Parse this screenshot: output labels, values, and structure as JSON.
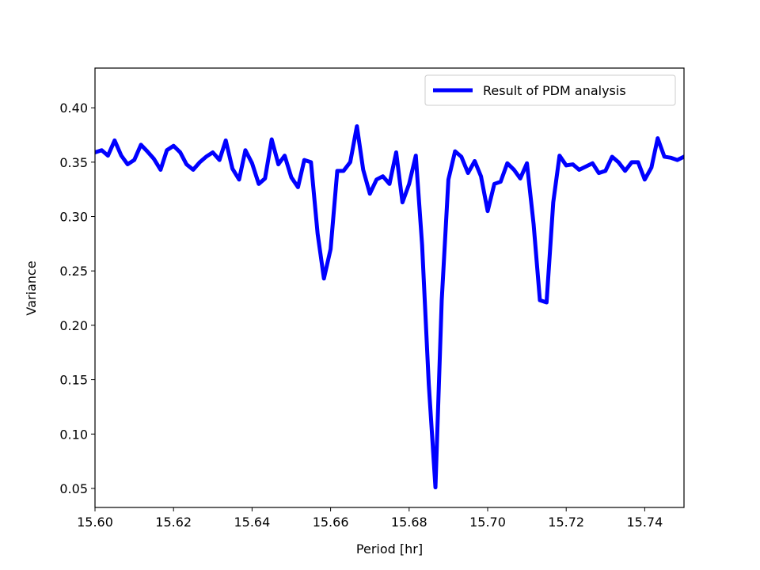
{
  "chart_data": {
    "type": "line",
    "title": "",
    "xlabel": "Period [hr]",
    "ylabel": "Variance",
    "xlim": [
      15.6,
      15.75
    ],
    "ylim": [
      0.0325,
      0.4365
    ],
    "xticks": [
      15.6,
      15.62,
      15.64,
      15.66,
      15.68,
      15.7,
      15.72,
      15.74
    ],
    "xtick_labels": [
      "15.60",
      "15.62",
      "15.64",
      "15.66",
      "15.68",
      "15.70",
      "15.72",
      "15.74"
    ],
    "yticks": [
      0.05,
      0.1,
      0.15,
      0.2,
      0.25,
      0.3,
      0.35,
      0.4
    ],
    "ytick_labels": [
      "0.05",
      "0.10",
      "0.15",
      "0.20",
      "0.25",
      "0.30",
      "0.35",
      "0.40"
    ],
    "grid": false,
    "legend": {
      "position": "upper-right",
      "entries": [
        "Result of PDM analysis"
      ]
    },
    "series": [
      {
        "name": "Result of PDM analysis",
        "color": "#0000ff",
        "x": [
          15.6,
          15.6017,
          15.6033,
          15.605,
          15.6067,
          15.6083,
          15.61,
          15.6117,
          15.6133,
          15.615,
          15.6167,
          15.6183,
          15.62,
          15.6217,
          15.6233,
          15.625,
          15.6267,
          15.6283,
          15.63,
          15.6317,
          15.6333,
          15.635,
          15.6367,
          15.6383,
          15.64,
          15.6417,
          15.6433,
          15.645,
          15.6467,
          15.6483,
          15.65,
          15.6517,
          15.6533,
          15.655,
          15.6567,
          15.6583,
          15.66,
          15.6617,
          15.6633,
          15.665,
          15.6667,
          15.6683,
          15.67,
          15.6717,
          15.6733,
          15.675,
          15.6767,
          15.6783,
          15.68,
          15.6817,
          15.6833,
          15.685,
          15.6867,
          15.6883,
          15.69,
          15.6917,
          15.6933,
          15.695,
          15.6967,
          15.6983,
          15.7,
          15.7017,
          15.7033,
          15.705,
          15.7067,
          15.7083,
          15.71,
          15.7117,
          15.7133,
          15.715,
          15.7167,
          15.7183,
          15.72,
          15.7217,
          15.7233,
          15.725,
          15.7267,
          15.7283,
          15.73,
          15.7317,
          15.7333,
          15.735,
          15.7367,
          15.7383,
          15.74,
          15.7417,
          15.7433,
          15.745,
          15.7467,
          15.7483,
          15.75
        ],
        "y": [
          0.359,
          0.361,
          0.356,
          0.37,
          0.356,
          0.348,
          0.352,
          0.366,
          0.36,
          0.353,
          0.343,
          0.361,
          0.365,
          0.359,
          0.348,
          0.343,
          0.35,
          0.355,
          0.359,
          0.352,
          0.37,
          0.344,
          0.334,
          0.361,
          0.349,
          0.33,
          0.335,
          0.371,
          0.348,
          0.356,
          0.336,
          0.327,
          0.352,
          0.35,
          0.284,
          0.243,
          0.27,
          0.342,
          0.342,
          0.35,
          0.383,
          0.343,
          0.321,
          0.334,
          0.337,
          0.33,
          0.359,
          0.313,
          0.33,
          0.356,
          0.274,
          0.146,
          0.051,
          0.223,
          0.334,
          0.36,
          0.355,
          0.34,
          0.351,
          0.337,
          0.305,
          0.33,
          0.332,
          0.349,
          0.343,
          0.335,
          0.349,
          0.293,
          0.223,
          0.221,
          0.313,
          0.356,
          0.347,
          0.348,
          0.343,
          0.346,
          0.349,
          0.34,
          0.342,
          0.355,
          0.35,
          0.342,
          0.35,
          0.35,
          0.334,
          0.345,
          0.372,
          0.355,
          0.354,
          0.352,
          0.355
        ]
      }
    ]
  }
}
